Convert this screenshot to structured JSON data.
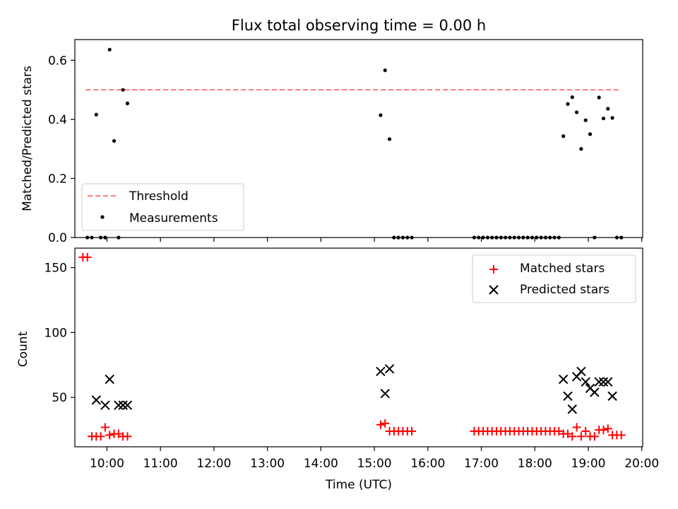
{
  "chart_data": [
    {
      "type": "scatter",
      "title": "Flux total observing time = 0.00 h",
      "xlabel": "",
      "ylabel": "Matched/Predicted stars",
      "xlim": [
        "09:24",
        "20:01"
      ],
      "ylim": [
        0,
        0.67
      ],
      "yticks": [
        0.0,
        0.2,
        0.4,
        0.6
      ],
      "ytick_labels": [
        "0.0",
        "0.2",
        "0.4",
        "0.6"
      ],
      "legend_position": "lower-left",
      "series": [
        {
          "name": "Threshold",
          "kind": "dashed-line",
          "color": "#ff7f7f",
          "x": [
            "09:36",
            "19:34"
          ],
          "y": [
            0.5,
            0.5
          ]
        },
        {
          "name": "Measurements",
          "kind": "points",
          "color": "#000000",
          "x": [
            "09:38",
            "09:43",
            "09:48",
            "09:53",
            "09:58",
            "10:03",
            "10:08",
            "10:13",
            "10:18",
            "10:23",
            "15:07",
            "15:12",
            "15:17",
            "15:22",
            "15:27",
            "15:32",
            "15:37",
            "15:42",
            "16:52",
            "16:57",
            "17:02",
            "17:07",
            "17:12",
            "17:17",
            "17:22",
            "17:27",
            "17:32",
            "17:37",
            "17:42",
            "17:47",
            "17:52",
            "17:57",
            "18:02",
            "18:07",
            "18:12",
            "18:17",
            "18:22",
            "18:27",
            "18:32",
            "18:37",
            "18:42",
            "18:47",
            "18:52",
            "18:57",
            "19:02",
            "19:07",
            "19:12",
            "19:17",
            "19:22",
            "19:27",
            "19:32",
            "19:37"
          ],
          "y": [
            0,
            0,
            0.416,
            0,
            0,
            0.636,
            0.327,
            0,
            0.5,
            0.454,
            0.414,
            0.566,
            0.333,
            0,
            0,
            0,
            0,
            0,
            0,
            0,
            0,
            0,
            0,
            0,
            0,
            0,
            0,
            0,
            0,
            0,
            0,
            0,
            0,
            0,
            0,
            0,
            0,
            0,
            0.343,
            0.452,
            0.475,
            0.424,
            0.3,
            0.397,
            0.35,
            0,
            0.474,
            0.403,
            0.436,
            0.405,
            0,
            0
          ]
        }
      ]
    },
    {
      "type": "scatter",
      "title": "",
      "xlabel": "Time (UTC)",
      "ylabel": "Count",
      "xlim": [
        "09:24",
        "20:01"
      ],
      "ylim": [
        12,
        165
      ],
      "yticks": [
        50,
        100,
        150
      ],
      "ytick_labels": [
        "50",
        "100",
        "150"
      ],
      "xtick_labels": [
        "10:00",
        "11:00",
        "12:00",
        "13:00",
        "14:00",
        "15:00",
        "16:00",
        "17:00",
        "18:00",
        "19:00",
        "20:00"
      ],
      "legend_position": "upper-right",
      "series": [
        {
          "name": "Matched stars",
          "kind": "plus",
          "color": "#ff0000",
          "x": [
            "09:33",
            "09:38",
            "09:43",
            "09:48",
            "09:53",
            "09:58",
            "10:03",
            "10:08",
            "10:13",
            "10:18",
            "10:23",
            "15:07",
            "15:12",
            "15:17",
            "15:22",
            "15:27",
            "15:32",
            "15:37",
            "15:42",
            "16:52",
            "16:57",
            "17:02",
            "17:07",
            "17:12",
            "17:17",
            "17:22",
            "17:27",
            "17:32",
            "17:37",
            "17:42",
            "17:47",
            "17:52",
            "17:57",
            "18:02",
            "18:07",
            "18:12",
            "18:17",
            "18:22",
            "18:27",
            "18:32",
            "18:37",
            "18:42",
            "18:47",
            "18:52",
            "18:57",
            "19:02",
            "19:07",
            "19:12",
            "19:17",
            "19:22",
            "19:27",
            "19:32",
            "19:37"
          ],
          "y": [
            158,
            158,
            20,
            20,
            20,
            27,
            21,
            22,
            22,
            20,
            20,
            29,
            30,
            24,
            24,
            24,
            24,
            24,
            24,
            24,
            24,
            24,
            24,
            24,
            24,
            24,
            24,
            24,
            24,
            24,
            24,
            24,
            24,
            24,
            24,
            24,
            24,
            24,
            24,
            22,
            22,
            20,
            27,
            20,
            24,
            20,
            20,
            25,
            25,
            26,
            21,
            21,
            21
          ]
        },
        {
          "name": "Predicted stars",
          "kind": "x",
          "color": "#000000",
          "x": [
            "09:48",
            "09:58",
            "10:03",
            "10:13",
            "10:18",
            "10:23",
            "15:07",
            "15:12",
            "15:17",
            "18:32",
            "18:37",
            "18:42",
            "18:47",
            "18:52",
            "18:57",
            "19:02",
            "19:07",
            "19:12",
            "19:17",
            "19:22",
            "19:27"
          ],
          "y": [
            48,
            44,
            64,
            44,
            44,
            44,
            70,
            53,
            72,
            64,
            51,
            41,
            66,
            70,
            62,
            57,
            54,
            62,
            62,
            62,
            51
          ]
        }
      ]
    }
  ]
}
